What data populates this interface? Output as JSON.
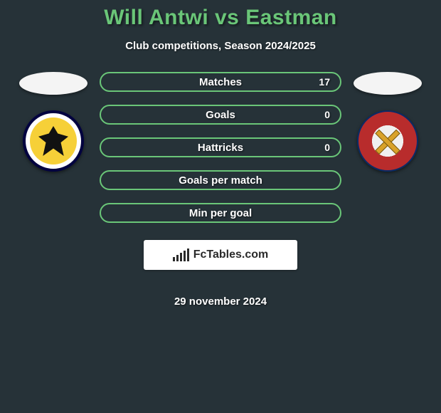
{
  "title": "Will Antwi vs Eastman",
  "subtitle": "Club competitions, Season 2024/2025",
  "date": "29 november 2024",
  "watermark": "FcTables.com",
  "colors": {
    "background": "#263238",
    "accent": "#6ac678",
    "text": "#ffffff"
  },
  "left": {
    "flag_color": "#f4f4f4",
    "crest_name": "afc-wimbledon-crest",
    "crest_bg": "#ffffff",
    "crest_inner": "#f6d038",
    "crest_border": "#020240"
  },
  "right": {
    "flag_color": "#f4f4f4",
    "crest_name": "dagenham-redbridge-crest",
    "crest_outer": "#b82c2c",
    "crest_inner": "#f0f0f0",
    "crest_border": "#0a2a66",
    "crest_cross": "#d9a22a"
  },
  "rows": [
    {
      "label": "Matches",
      "left": "",
      "right": "17"
    },
    {
      "label": "Goals",
      "left": "",
      "right": "0"
    },
    {
      "label": "Hattricks",
      "left": "",
      "right": "0"
    },
    {
      "label": "Goals per match",
      "left": "",
      "right": ""
    },
    {
      "label": "Min per goal",
      "left": "",
      "right": ""
    }
  ]
}
